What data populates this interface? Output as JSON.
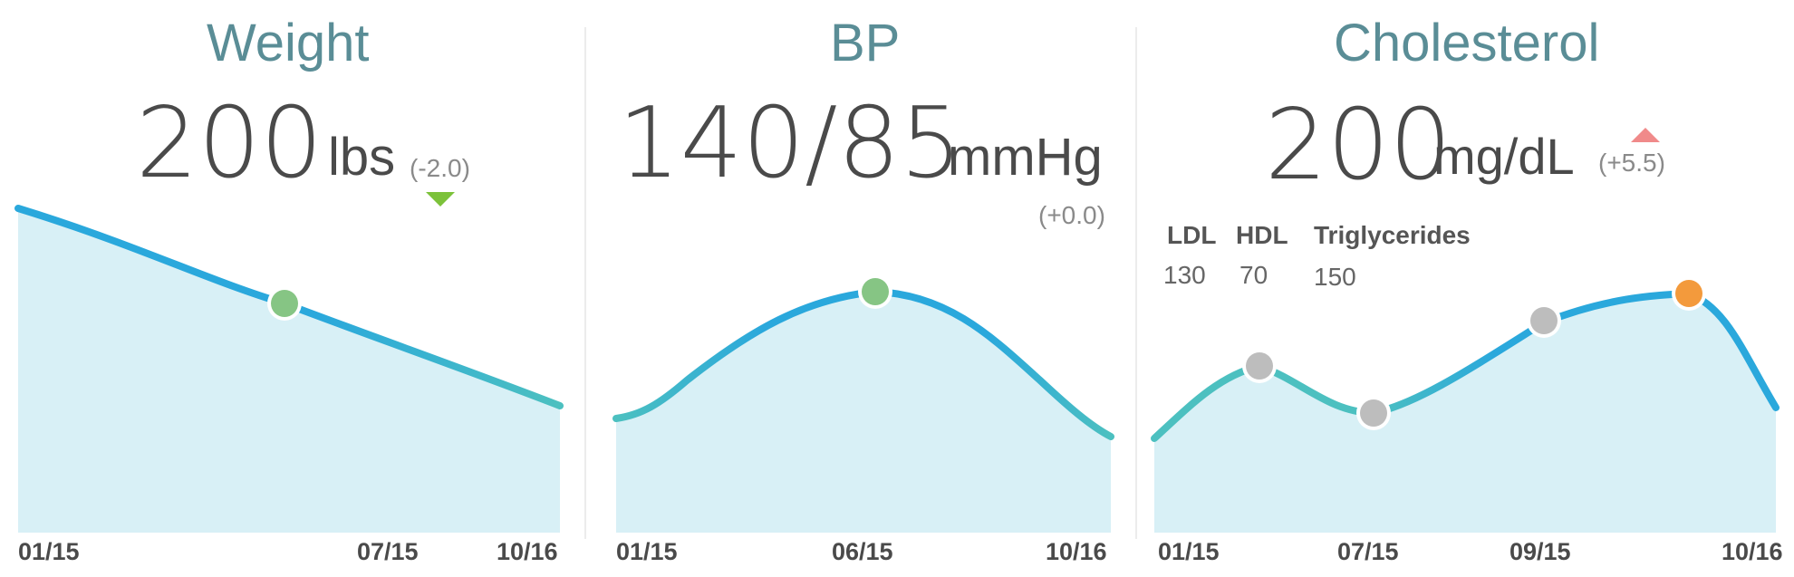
{
  "weight": {
    "title": "Weight",
    "value": "200",
    "unit": "lbs",
    "delta": "(-2.0)",
    "trend": "down",
    "trend_color": "#7cc23a",
    "x_labels": [
      "01/15",
      "07/15",
      "10/16"
    ],
    "marker_color": "#86c584"
  },
  "bp": {
    "title": "BP",
    "value": "140/85",
    "unit": "mmHg",
    "delta": "(+0.0)",
    "x_labels": [
      "01/15",
      "06/15",
      "10/16"
    ],
    "marker_color": "#86c584"
  },
  "cholesterol": {
    "title": "Cholesterol",
    "value": "200",
    "unit": "mg/dL",
    "delta": "(+5.5)",
    "trend": "up",
    "trend_color": "#f08a8a",
    "stats": [
      {
        "label": "LDL",
        "value": "130"
      },
      {
        "label": "HDL",
        "value": "70"
      },
      {
        "label": "Triglycerides",
        "value": "150"
      }
    ],
    "x_labels": [
      "01/15",
      "07/15",
      "09/15",
      "10/16"
    ],
    "marker_colors": [
      "#bdbdbd",
      "#bdbdbd",
      "#bdbdbd",
      "#f39a3c"
    ]
  },
  "colors": {
    "title": "#5a8d96",
    "line_blue": "#2aa8dc",
    "line_teal": "#4cc0c0",
    "fill": "#d8f0f6"
  }
}
